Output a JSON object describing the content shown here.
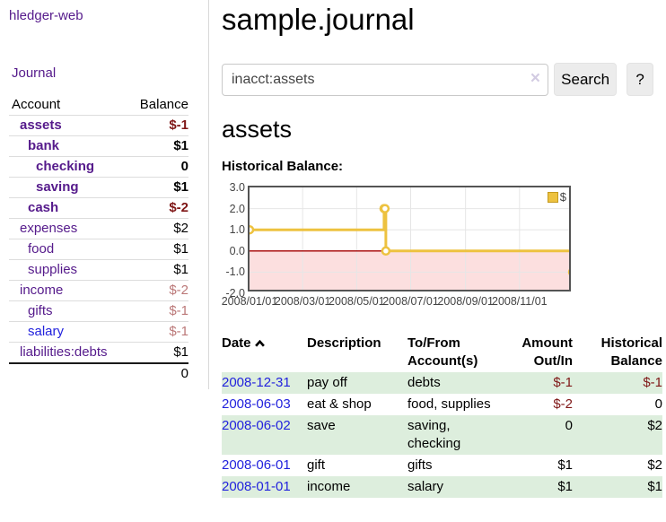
{
  "colors": {
    "link_purple": "#551a8b",
    "link_blue": "#2222dd",
    "negative_strong": "#7f1616",
    "negative_soft": "#bb7878",
    "row_stripe_green": "#ddeedd",
    "series_yellow": "#edc240",
    "negative_region_pink": "#fcdfdf",
    "zero_line_red": "#a40000",
    "plot_border": "#545454"
  },
  "sidebar": {
    "brand": "hledger-web",
    "journal_label": "Journal",
    "accounts_table": {
      "headers": {
        "account": "Account",
        "balance": "Balance"
      },
      "rows": [
        {
          "name": "assets",
          "indent": 0,
          "bold": true,
          "blue": false,
          "balance": "$-1",
          "balance_class": "neg-bold"
        },
        {
          "name": "bank",
          "indent": 1,
          "bold": true,
          "blue": false,
          "balance": "$1",
          "balance_class": "bold"
        },
        {
          "name": "checking",
          "indent": 2,
          "bold": true,
          "blue": false,
          "balance": "0",
          "balance_class": "bold"
        },
        {
          "name": "saving",
          "indent": 2,
          "bold": true,
          "blue": false,
          "balance": "$1",
          "balance_class": "bold"
        },
        {
          "name": "cash",
          "indent": 1,
          "bold": true,
          "blue": false,
          "balance": "$-2",
          "balance_class": "neg-bold"
        },
        {
          "name": "expenses",
          "indent": 0,
          "bold": false,
          "blue": false,
          "balance": "$2",
          "balance_class": "plain"
        },
        {
          "name": "food",
          "indent": 1,
          "bold": false,
          "blue": false,
          "balance": "$1",
          "balance_class": "plain"
        },
        {
          "name": "supplies",
          "indent": 1,
          "bold": false,
          "blue": false,
          "balance": "$1",
          "balance_class": "plain"
        },
        {
          "name": "income",
          "indent": 0,
          "bold": false,
          "blue": false,
          "balance": "$-2",
          "balance_class": "neg-soft"
        },
        {
          "name": "gifts",
          "indent": 1,
          "bold": false,
          "blue": false,
          "balance": "$-1",
          "balance_class": "neg-soft"
        },
        {
          "name": "salary",
          "indent": 1,
          "bold": false,
          "blue": true,
          "balance": "$-1",
          "balance_class": "neg-soft"
        },
        {
          "name": "liabilities:debts",
          "indent": 0,
          "bold": false,
          "blue": false,
          "balance": "$1",
          "balance_class": "plain",
          "last": true
        }
      ],
      "total": "0"
    }
  },
  "main": {
    "title": "sample.journal",
    "search": {
      "value": "inacct:assets",
      "clear_icon": "×",
      "button_label": "Search",
      "help_label": "?"
    },
    "account_heading": "assets",
    "chart_label": "Historical Balance:"
  },
  "chart_data": {
    "type": "line",
    "step": true,
    "title": "Historical Balance",
    "legend": "$",
    "legend_position": "top-right",
    "grid": true,
    "ylim": [
      -2.0,
      3.0
    ],
    "yticks": [
      "3.0",
      "2.0",
      "1.0",
      "0.0",
      "-1.0",
      "-2.0"
    ],
    "ytick_values": [
      3,
      2,
      1,
      0,
      -1,
      -2
    ],
    "xrange": [
      "2008-01-01",
      "2008-12-31"
    ],
    "xticks": [
      "2008/01/01",
      "2008/03/01",
      "2008/05/01",
      "2008/07/01",
      "2008/09/01",
      "2008/11/01"
    ],
    "series": [
      {
        "name": "$",
        "color": "#edc240",
        "points": [
          [
            "2008-01-01",
            1
          ],
          [
            "2008-06-01",
            2
          ],
          [
            "2008-06-02",
            2
          ],
          [
            "2008-06-03",
            0
          ],
          [
            "2008-12-31",
            -1
          ]
        ]
      }
    ]
  },
  "register_table": {
    "headers": {
      "date": "Date",
      "description": "Description",
      "tofrom": "To/From Account(s)",
      "amount": "Amount Out/In",
      "balance": "Historical Balance"
    },
    "rows": [
      {
        "date": "2008-12-31",
        "description": "pay off",
        "accounts": "debts",
        "amount": "$-1",
        "amount_neg": true,
        "balance": "$-1",
        "balance_neg": true
      },
      {
        "date": "2008-06-03",
        "description": "eat & shop",
        "accounts": "food, supplies",
        "amount": "$-2",
        "amount_neg": true,
        "balance": "0",
        "balance_neg": false
      },
      {
        "date": "2008-06-02",
        "description": "save",
        "accounts": "saving, checking",
        "amount": "0",
        "amount_neg": false,
        "balance": "$2",
        "balance_neg": false
      },
      {
        "date": "2008-06-01",
        "description": "gift",
        "accounts": "gifts",
        "amount": "$1",
        "amount_neg": false,
        "balance": "$2",
        "balance_neg": false
      },
      {
        "date": "2008-01-01",
        "description": "income",
        "accounts": "salary",
        "amount": "$1",
        "amount_neg": false,
        "balance": "$1",
        "balance_neg": false
      }
    ]
  },
  "icons": {
    "sort_ascending": "chevron-up",
    "clear_search": "x"
  }
}
